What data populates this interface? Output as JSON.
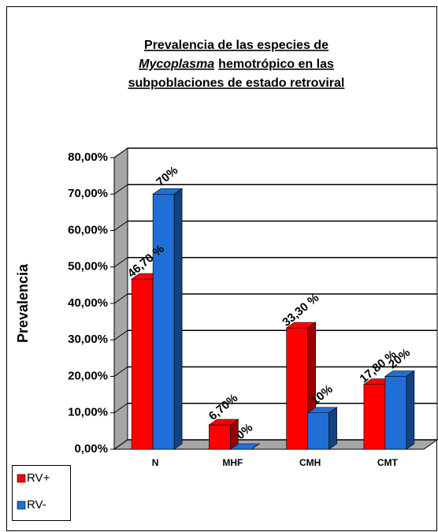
{
  "chart_data": {
    "type": "bar3d",
    "title": [
      "Prevalencia de las especies de",
      [
        "Mycoplasma",
        "hemotrópico en las"
      ],
      "subpoblaciones de estado retroviral"
    ],
    "y_label": "Prevalencia",
    "categories": [
      "N",
      "MHF",
      "CMH",
      "CMT"
    ],
    "series": [
      {
        "name": "RV+",
        "color": "#ff0000",
        "values": [
          46.7,
          6.7,
          33.3,
          17.8
        ],
        "value_labels": [
          "46,70 %",
          "6,70%",
          "33,30 %",
          "17,80 %"
        ]
      },
      {
        "name": "RV-",
        "color": "#1f6fd6",
        "values": [
          70,
          0,
          10,
          20
        ],
        "value_labels": [
          "70%",
          "0%",
          "10%",
          "20%"
        ]
      }
    ],
    "ylim": [
      0,
      80
    ],
    "yticks": [
      {
        "value": 0,
        "label": "0,00%"
      },
      {
        "value": 10,
        "label": "10,00%"
      },
      {
        "value": 20,
        "label": "20,00%"
      },
      {
        "value": 30,
        "label": "30,00%"
      },
      {
        "value": 40,
        "label": "40,00%"
      },
      {
        "value": 50,
        "label": "50,00%"
      },
      {
        "value": 60,
        "label": "60,00%"
      },
      {
        "value": 70,
        "label": "70,00%"
      },
      {
        "value": 80,
        "label": "80,00%"
      }
    ],
    "grid": true,
    "legend": "bottom-left"
  }
}
